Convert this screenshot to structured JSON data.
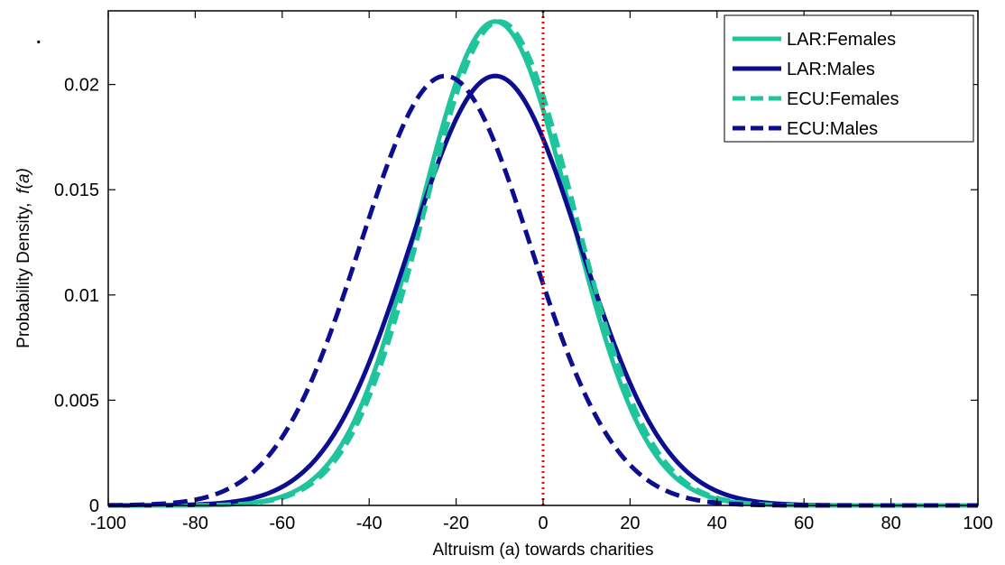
{
  "chart_data": {
    "type": "line",
    "xlabel": "Altruism (a) towards charities",
    "ylabel": "Probability Density,",
    "ylabel_symbol": "f(a)",
    "xlim": [
      -100,
      100
    ],
    "ylim": [
      0,
      0.0235
    ],
    "x_ticks": [
      -100,
      -80,
      -60,
      -40,
      -20,
      0,
      20,
      40,
      60,
      80,
      100
    ],
    "x_tick_labels": [
      "-100",
      "-80",
      "-60",
      "-40",
      "-20",
      "0",
      "20",
      "40",
      "60",
      "80",
      "100"
    ],
    "y_ticks": [
      0,
      0.005,
      0.01,
      0.015,
      0.02
    ],
    "y_tick_labels": [
      "0",
      "0.005",
      "0.01",
      "0.015",
      "0.02"
    ],
    "grid": false,
    "legend_position": "top-right",
    "reference_line": {
      "x": 0,
      "color": "#ff0000",
      "style": "dotted"
    },
    "series": [
      {
        "name": "LAR:Females",
        "color": "#1fc49c",
        "dash": "solid",
        "mean": -11,
        "sd": 17.35
      },
      {
        "name": "LAR:Males",
        "color": "#0d0d8f",
        "dash": "solid",
        "mean": -11,
        "sd": 19.55
      },
      {
        "name": "ECU:Females",
        "color": "#1fc49c",
        "dash": "dashed",
        "mean": -10,
        "sd": 17.35
      },
      {
        "name": "ECU:Males",
        "color": "#0d0d8f",
        "dash": "dashed",
        "mean": -22.5,
        "sd": 19.55
      }
    ],
    "stray_mark": "."
  }
}
